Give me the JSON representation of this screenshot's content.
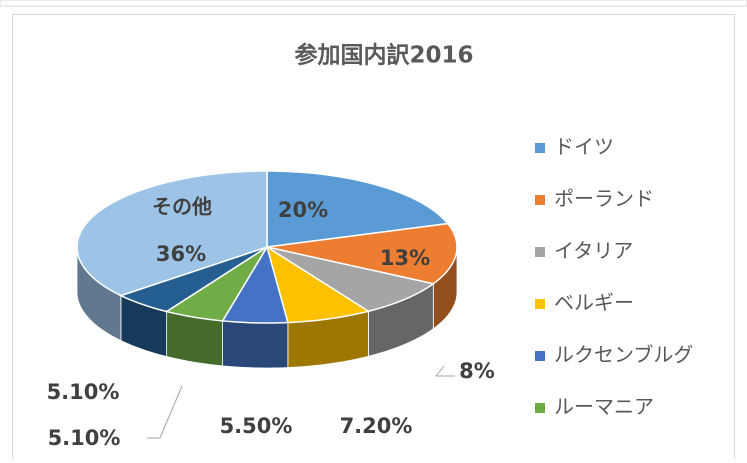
{
  "chart_data": {
    "type": "pie3d",
    "title": "参加国内訳2016",
    "categories": [
      "ドイツ",
      "ポーランド",
      "イタリア",
      "ベルギー",
      "ルクセンブルグ",
      "ルーマニア",
      null,
      "その他"
    ],
    "values": [
      20,
      13,
      8,
      7.2,
      5.5,
      5.1,
      5.1,
      36
    ],
    "value_labels": [
      "20%",
      "13%",
      "8%",
      "7.20%",
      "5.50%",
      "5.10%",
      "5.10%",
      "36%"
    ],
    "colors": [
      "#5b9bd5",
      "#ed7d31",
      "#a5a5a5",
      "#ffc000",
      "#4472c4",
      "#70ad47",
      "#255e91",
      "#9dc3e6"
    ],
    "legend": {
      "position": "right",
      "max_entries": 6
    }
  }
}
